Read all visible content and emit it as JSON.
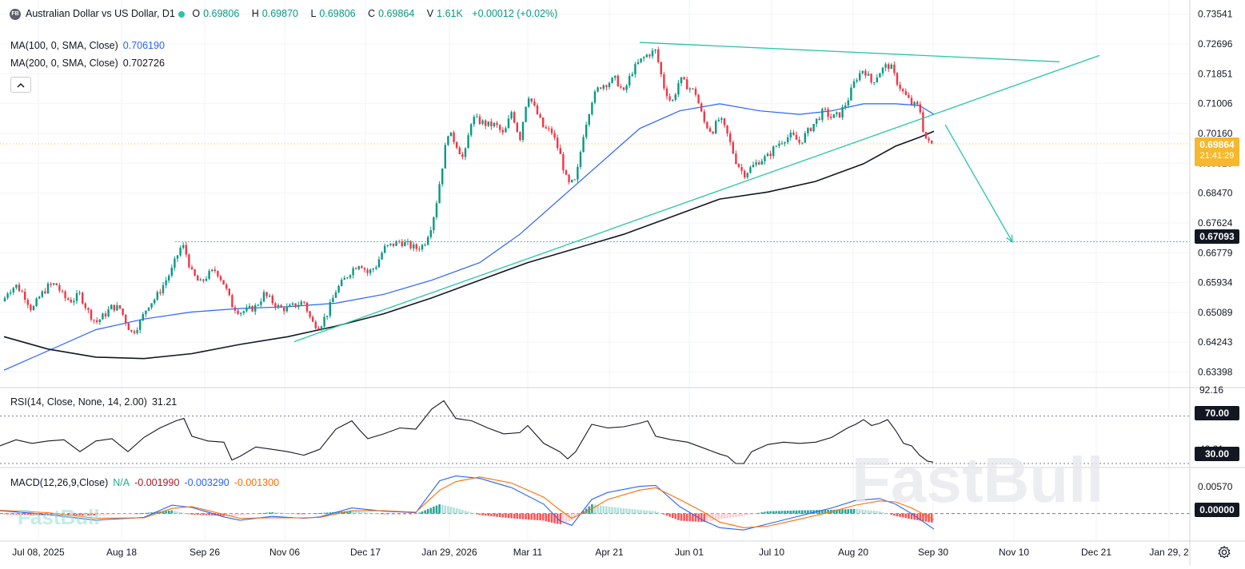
{
  "header": {
    "logo_text": "FB",
    "symbol_title": "Australian Dollar vs US Dollar, D1",
    "open_label": "O",
    "open": "0.69806",
    "high_label": "H",
    "high": "0.69870",
    "low_label": "L",
    "low": "0.69806",
    "close_label": "C",
    "close": "0.69864",
    "volume_label": "V",
    "volume": "1.61K",
    "change": "+0.00012 (+0.02%)"
  },
  "indicators": {
    "ma100": {
      "label": "MA(100, 0, SMA, Close)",
      "value": "0.706190",
      "color": "#2962ff"
    },
    "ma200": {
      "label": "MA(200, 0, SMA, Close)",
      "value": "0.702726",
      "color": "#131722"
    }
  },
  "rsi_legend": {
    "label": "RSI(14, Close, None, 14, 2.00)",
    "value": "31.21"
  },
  "macd_legend": {
    "label": "MACD(12,26,9,Close)",
    "na": "N/A",
    "hist": "-0.001990",
    "macd": "-0.003290",
    "signal": "-0.001300"
  },
  "price_tags": {
    "current": "0.69864",
    "countdown": "21:41:29",
    "level": "0.67093",
    "rsi_70": "70.00",
    "rsi_30": "30.00",
    "macd_zero": "0.00000"
  },
  "watermark": {
    "large": "FastBull",
    "small": "FastBull"
  },
  "colors": {
    "up": "#089981",
    "down": "#f23645",
    "teal": "#26c6a6",
    "ma100": "#2962ff",
    "ma200": "#131722",
    "macd_line": "#2962ff",
    "signal_line": "#ff6d00",
    "current_tag": "#f5b82e",
    "level_tag": "#131722"
  },
  "chart_data": [
    {
      "type": "candlestick",
      "title": "Australian Dollar vs US Dollar, D1",
      "y_ticks": [
        "0.73541",
        "0.72696",
        "0.71851",
        "0.71006",
        "0.70160",
        "0.69315",
        "0.68470",
        "0.67624",
        "0.66779",
        "0.65934",
        "0.65089",
        "0.64243",
        "0.63398"
      ],
      "ylim": [
        0.6298,
        0.7376
      ],
      "x_ticks": [
        "Jul 08, 2025",
        "Aug 18",
        "Sep 26",
        "Nov 06",
        "Dec 17",
        "Jan 29, 2026",
        "Mar 11",
        "Apr 21",
        "Jun 01",
        "Jul 10",
        "Aug 20",
        "Sep 30",
        "Nov 10",
        "Dec 21",
        "Jan 29, 2"
      ],
      "close_series": [
        [
          0,
          0.652
        ],
        [
          10,
          0.657
        ],
        [
          20,
          0.6585
        ],
        [
          30,
          0.656
        ],
        [
          40,
          0.6515
        ],
        [
          50,
          0.6555
        ],
        [
          60,
          0.6582
        ],
        [
          70,
          0.659
        ],
        [
          80,
          0.655
        ],
        [
          90,
          0.6542
        ],
        [
          100,
          0.656
        ],
        [
          110,
          0.6512
        ],
        [
          120,
          0.648
        ],
        [
          130,
          0.65
        ],
        [
          140,
          0.6525
        ],
        [
          150,
          0.652
        ],
        [
          160,
          0.647
        ],
        [
          165,
          0.645
        ],
        [
          175,
          0.648
        ],
        [
          185,
          0.653
        ],
        [
          195,
          0.655
        ],
        [
          205,
          0.659
        ],
        [
          215,
          0.663
        ],
        [
          225,
          0.669
        ],
        [
          230,
          0.6695
        ],
        [
          240,
          0.662
        ],
        [
          250,
          0.659
        ],
        [
          260,
          0.6615
        ],
        [
          270,
          0.663
        ],
        [
          280,
          0.659
        ],
        [
          290,
          0.653
        ],
        [
          300,
          0.651
        ],
        [
          310,
          0.6515
        ],
        [
          320,
          0.6525
        ],
        [
          330,
          0.656
        ],
        [
          340,
          0.654
        ],
        [
          350,
          0.652
        ],
        [
          360,
          0.652
        ],
        [
          370,
          0.653
        ],
        [
          380,
          0.654
        ],
        [
          390,
          0.648
        ],
        [
          400,
          0.647
        ],
        [
          410,
          0.651
        ],
        [
          420,
          0.657
        ],
        [
          430,
          0.66
        ],
        [
          440,
          0.663
        ],
        [
          450,
          0.665
        ],
        [
          460,
          0.662
        ],
        [
          470,
          0.664
        ],
        [
          480,
          0.669
        ],
        [
          490,
          0.67
        ],
        [
          500,
          0.671
        ],
        [
          510,
          0.67
        ],
        [
          520,
          0.669
        ],
        [
          530,
          0.67
        ],
        [
          540,
          0.676
        ],
        [
          545,
          0.681
        ],
        [
          550,
          0.688
        ],
        [
          555,
          0.695
        ],
        [
          560,
          0.702
        ],
        [
          570,
          0.699
        ],
        [
          580,
          0.694
        ],
        [
          590,
          0.706
        ],
        [
          600,
          0.705
        ],
        [
          610,
          0.704
        ],
        [
          620,
          0.704
        ],
        [
          630,
          0.701
        ],
        [
          640,
          0.708
        ],
        [
          650,
          0.7
        ],
        [
          660,
          0.713
        ],
        [
          670,
          0.708
        ],
        [
          680,
          0.703
        ],
        [
          690,
          0.702
        ],
        [
          700,
          0.696
        ],
        [
          710,
          0.687
        ],
        [
          720,
          0.688
        ],
        [
          730,
          0.702
        ],
        [
          740,
          0.711
        ],
        [
          750,
          0.715
        ],
        [
          760,
          0.716
        ],
        [
          770,
          0.717
        ],
        [
          780,
          0.713
        ],
        [
          790,
          0.719
        ],
        [
          800,
          0.722
        ],
        [
          810,
          0.724
        ],
        [
          820,
          0.725
        ],
        [
          830,
          0.715
        ],
        [
          840,
          0.71
        ],
        [
          850,
          0.717
        ],
        [
          860,
          0.715
        ],
        [
          870,
          0.713
        ],
        [
          880,
          0.705
        ],
        [
          890,
          0.702
        ],
        [
          900,
          0.706
        ],
        [
          910,
          0.701
        ],
        [
          920,
          0.694
        ],
        [
          930,
          0.69
        ],
        [
          940,
          0.692
        ],
        [
          950,
          0.694
        ],
        [
          960,
          0.695
        ],
        [
          970,
          0.698
        ],
        [
          980,
          0.7
        ],
        [
          990,
          0.701
        ],
        [
          1000,
          0.699
        ],
        [
          1010,
          0.702
        ],
        [
          1020,
          0.705
        ],
        [
          1030,
          0.708
        ],
        [
          1040,
          0.706
        ],
        [
          1050,
          0.707
        ],
        [
          1060,
          0.711
        ],
        [
          1070,
          0.717
        ],
        [
          1080,
          0.72
        ],
        [
          1090,
          0.716
        ],
        [
          1100,
          0.719
        ],
        [
          1110,
          0.721
        ],
        [
          1115,
          0.72
        ],
        [
          1120,
          0.717
        ],
        [
          1130,
          0.713
        ],
        [
          1140,
          0.71
        ],
        [
          1150,
          0.709
        ],
        [
          1155,
          0.702
        ],
        [
          1160,
          0.699
        ],
        [
          1165,
          0.6986
        ]
      ],
      "ma100_series": [
        [
          5,
          0.6345
        ],
        [
          60,
          0.64
        ],
        [
          120,
          0.646
        ],
        [
          180,
          0.649
        ],
        [
          240,
          0.651
        ],
        [
          300,
          0.652
        ],
        [
          360,
          0.6525
        ],
        [
          420,
          0.6535
        ],
        [
          480,
          0.656
        ],
        [
          540,
          0.66
        ],
        [
          600,
          0.665
        ],
        [
          650,
          0.673
        ],
        [
          700,
          0.683
        ],
        [
          750,
          0.693
        ],
        [
          800,
          0.703
        ],
        [
          850,
          0.708
        ],
        [
          900,
          0.71
        ],
        [
          950,
          0.708
        ],
        [
          1000,
          0.707
        ],
        [
          1040,
          0.708
        ],
        [
          1080,
          0.71
        ],
        [
          1120,
          0.71
        ],
        [
          1150,
          0.7095
        ],
        [
          1168,
          0.707
        ]
      ],
      "ma200_series": [
        [
          5,
          0.644
        ],
        [
          60,
          0.6405
        ],
        [
          120,
          0.6382
        ],
        [
          180,
          0.6378
        ],
        [
          240,
          0.6392
        ],
        [
          300,
          0.6418
        ],
        [
          360,
          0.644
        ],
        [
          420,
          0.647
        ],
        [
          480,
          0.6505
        ],
        [
          540,
          0.655
        ],
        [
          600,
          0.66
        ],
        [
          660,
          0.665
        ],
        [
          720,
          0.669
        ],
        [
          780,
          0.673
        ],
        [
          840,
          0.678
        ],
        [
          900,
          0.683
        ],
        [
          960,
          0.685
        ],
        [
          1020,
          0.688
        ],
        [
          1080,
          0.693
        ],
        [
          1120,
          0.698
        ],
        [
          1150,
          0.7005
        ],
        [
          1168,
          0.7022
        ]
      ],
      "trendlines": [
        {
          "kind": "upper-resistance",
          "from": [
            800,
            0.7274
          ],
          "to": [
            1325,
            0.7219
          ]
        },
        {
          "kind": "rising-support",
          "from": [
            368,
            0.6426
          ],
          "to": [
            1375,
            0.7237
          ]
        },
        {
          "kind": "projection-arrow",
          "from": [
            1182,
            0.7041
          ],
          "to": [
            1266,
            0.6709
          ]
        }
      ],
      "horizontal_levels": [
        {
          "value": 0.67093,
          "from_x": 219
        }
      ],
      "current_price": 0.69864
    },
    {
      "type": "line",
      "title": "RSI(14, Close, None, 14, 2.00)",
      "y_ticks": [
        "92.16",
        "42.21"
      ],
      "levels": [
        70,
        30
      ],
      "ylim": [
        28,
        92
      ],
      "series": [
        [
          0,
          45
        ],
        [
          20,
          50
        ],
        [
          40,
          47
        ],
        [
          60,
          49
        ],
        [
          80,
          50
        ],
        [
          100,
          40
        ],
        [
          120,
          49
        ],
        [
          140,
          51
        ],
        [
          160,
          40
        ],
        [
          180,
          52
        ],
        [
          200,
          60
        ],
        [
          220,
          66
        ],
        [
          230,
          68
        ],
        [
          240,
          53
        ],
        [
          260,
          49
        ],
        [
          280,
          48
        ],
        [
          290,
          33
        ],
        [
          300,
          36
        ],
        [
          320,
          44
        ],
        [
          340,
          42
        ],
        [
          360,
          40
        ],
        [
          380,
          37
        ],
        [
          400,
          42
        ],
        [
          420,
          59
        ],
        [
          440,
          66
        ],
        [
          450,
          58
        ],
        [
          460,
          51
        ],
        [
          480,
          55
        ],
        [
          500,
          60
        ],
        [
          520,
          59
        ],
        [
          540,
          76
        ],
        [
          555,
          83
        ],
        [
          560,
          78
        ],
        [
          570,
          68
        ],
        [
          590,
          66
        ],
        [
          610,
          60
        ],
        [
          630,
          55
        ],
        [
          650,
          56
        ],
        [
          660,
          62
        ],
        [
          680,
          47
        ],
        [
          700,
          40
        ],
        [
          710,
          34
        ],
        [
          720,
          40
        ],
        [
          740,
          63
        ],
        [
          760,
          60
        ],
        [
          780,
          61
        ],
        [
          800,
          64
        ],
        [
          810,
          66
        ],
        [
          820,
          53
        ],
        [
          840,
          50
        ],
        [
          860,
          48
        ],
        [
          880,
          43
        ],
        [
          900,
          38
        ],
        [
          910,
          36
        ],
        [
          920,
          30
        ],
        [
          930,
          30
        ],
        [
          940,
          40
        ],
        [
          960,
          46
        ],
        [
          980,
          48
        ],
        [
          1000,
          47
        ],
        [
          1020,
          48
        ],
        [
          1040,
          52
        ],
        [
          1060,
          60
        ],
        [
          1070,
          63
        ],
        [
          1080,
          67
        ],
        [
          1090,
          62
        ],
        [
          1100,
          64
        ],
        [
          1110,
          67
        ],
        [
          1120,
          58
        ],
        [
          1130,
          47
        ],
        [
          1140,
          45
        ],
        [
          1150,
          37
        ],
        [
          1160,
          32
        ],
        [
          1167,
          31.2
        ]
      ]
    },
    {
      "type": "bar+line",
      "title": "MACD(12,26,9,Close)",
      "y_ticks": [
        "0.00570"
      ],
      "ylim": [
        -0.0055,
        0.0093
      ],
      "macd_line": [
        [
          0,
          0.0006
        ],
        [
          60,
          -0.0002
        ],
        [
          120,
          -0.0014
        ],
        [
          180,
          -0.0008
        ],
        [
          215,
          0.0018
        ],
        [
          240,
          0.0013
        ],
        [
          280,
          -0.0007
        ],
        [
          300,
          -0.0014
        ],
        [
          340,
          -0.0006
        ],
        [
          380,
          -0.001
        ],
        [
          400,
          -0.0007
        ],
        [
          440,
          0.0012
        ],
        [
          480,
          0.0005
        ],
        [
          520,
          0.0002
        ],
        [
          550,
          0.007
        ],
        [
          570,
          0.008
        ],
        [
          600,
          0.0075
        ],
        [
          640,
          0.0055
        ],
        [
          680,
          0.002
        ],
        [
          700,
          -0.0015
        ],
        [
          715,
          -0.0025
        ],
        [
          740,
          0.003
        ],
        [
          760,
          0.0045
        ],
        [
          800,
          0.0058
        ],
        [
          820,
          0.006
        ],
        [
          850,
          0.0015
        ],
        [
          880,
          -0.0015
        ],
        [
          900,
          -0.003
        ],
        [
          930,
          -0.0035
        ],
        [
          960,
          -0.0022
        ],
        [
          1000,
          -0.0005
        ],
        [
          1040,
          0.0012
        ],
        [
          1070,
          0.0028
        ],
        [
          1100,
          0.0032
        ],
        [
          1120,
          0.002
        ],
        [
          1140,
          0.0
        ],
        [
          1168,
          -0.0033
        ]
      ],
      "signal_line": [
        [
          0,
          0.0007
        ],
        [
          60,
          0.0002
        ],
        [
          120,
          -0.001
        ],
        [
          180,
          -0.0009
        ],
        [
          215,
          0.0011
        ],
        [
          240,
          0.0015
        ],
        [
          280,
          -0.0002
        ],
        [
          300,
          -0.001
        ],
        [
          340,
          -0.0009
        ],
        [
          380,
          -0.0009
        ],
        [
          400,
          -0.0008
        ],
        [
          440,
          0.0006
        ],
        [
          480,
          0.0006
        ],
        [
          520,
          0.0003
        ],
        [
          550,
          0.005
        ],
        [
          570,
          0.0068
        ],
        [
          600,
          0.0078
        ],
        [
          640,
          0.0065
        ],
        [
          680,
          0.0035
        ],
        [
          700,
          0.0008
        ],
        [
          715,
          -0.001
        ],
        [
          740,
          0.001
        ],
        [
          760,
          0.003
        ],
        [
          800,
          0.005
        ],
        [
          820,
          0.0055
        ],
        [
          850,
          0.003
        ],
        [
          880,
          0.0003
        ],
        [
          900,
          -0.0018
        ],
        [
          930,
          -0.003
        ],
        [
          960,
          -0.0027
        ],
        [
          1000,
          -0.0012
        ],
        [
          1040,
          0.0004
        ],
        [
          1070,
          0.0018
        ],
        [
          1100,
          0.0027
        ],
        [
          1120,
          0.0025
        ],
        [
          1140,
          0.0012
        ],
        [
          1168,
          -0.0013
        ]
      ],
      "zero_line": 0
    }
  ]
}
